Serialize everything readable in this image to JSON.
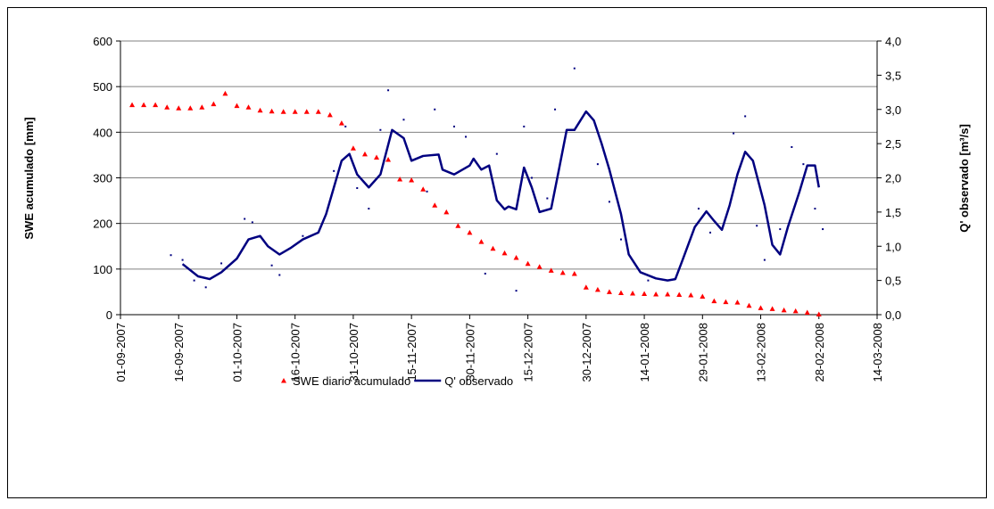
{
  "chart_data": {
    "type": "line",
    "ylabel": "SWE acumulado [mm]",
    "y2label": "Q' observado [m³/s]",
    "xlim": [
      "2007-09-01",
      "2008-03-14"
    ],
    "xticks": [
      {
        "value": "2007-09-01",
        "label": "01-09-2007"
      },
      {
        "value": "2007-09-16",
        "label": "16-09-2007"
      },
      {
        "value": "2007-10-01",
        "label": "01-10-2007"
      },
      {
        "value": "2007-10-16",
        "label": "16-10-2007"
      },
      {
        "value": "2007-10-31",
        "label": "31-10-2007"
      },
      {
        "value": "2007-11-15",
        "label": "15-11-2007"
      },
      {
        "value": "2007-11-30",
        "label": "30-11-2007"
      },
      {
        "value": "2007-12-15",
        "label": "15-12-2007"
      },
      {
        "value": "2007-12-30",
        "label": "30-12-2007"
      },
      {
        "value": "2008-01-14",
        "label": "14-01-2008"
      },
      {
        "value": "2008-01-29",
        "label": "29-01-2008"
      },
      {
        "value": "2008-02-13",
        "label": "13-02-2008"
      },
      {
        "value": "2008-02-28",
        "label": "28-02-2008"
      },
      {
        "value": "2008-03-14",
        "label": "14-03-2008"
      }
    ],
    "ylim": [
      0,
      600
    ],
    "yticks": [
      0,
      100,
      200,
      300,
      400,
      500,
      600
    ],
    "y2lim": [
      0,
      4
    ],
    "y2ticks": [
      {
        "value": 0,
        "label": "0,0"
      },
      {
        "value": 0.5,
        "label": "0,5"
      },
      {
        "value": 1,
        "label": "1,0"
      },
      {
        "value": 1.5,
        "label": "1,5"
      },
      {
        "value": 2,
        "label": "2,0"
      },
      {
        "value": 2.5,
        "label": "2,5"
      },
      {
        "value": 3,
        "label": "3,0"
      },
      {
        "value": 3.5,
        "label": "3,5"
      },
      {
        "value": 4,
        "label": "4,0"
      }
    ],
    "grid": true,
    "legend": "bottom",
    "series": [
      {
        "name": "SWE diario acumulado",
        "color": "#ff0000",
        "style": "markers",
        "axis": "y",
        "x": [
          "2007-09-04",
          "2007-09-07",
          "2007-09-10",
          "2007-09-13",
          "2007-09-16",
          "2007-09-19",
          "2007-09-22",
          "2007-09-25",
          "2007-09-28",
          "2007-10-01",
          "2007-10-04",
          "2007-10-07",
          "2007-10-10",
          "2007-10-13",
          "2007-10-16",
          "2007-10-19",
          "2007-10-22",
          "2007-10-25",
          "2007-10-28",
          "2007-10-31",
          "2007-11-03",
          "2007-11-06",
          "2007-11-09",
          "2007-11-12",
          "2007-11-15",
          "2007-11-18",
          "2007-11-21",
          "2007-11-24",
          "2007-11-27",
          "2007-11-30",
          "2007-12-03",
          "2007-12-06",
          "2007-12-09",
          "2007-12-12",
          "2007-12-15",
          "2007-12-18",
          "2007-12-21",
          "2007-12-24",
          "2007-12-27",
          "2007-12-30",
          "2008-01-02",
          "2008-01-05",
          "2008-01-08",
          "2008-01-11",
          "2008-01-14",
          "2008-01-17",
          "2008-01-20",
          "2008-01-23",
          "2008-01-26",
          "2008-01-29",
          "2008-02-01",
          "2008-02-04",
          "2008-02-07",
          "2008-02-10",
          "2008-02-13",
          "2008-02-16",
          "2008-02-19",
          "2008-02-22",
          "2008-02-25",
          "2008-02-28"
        ],
        "values": [
          460,
          460,
          460,
          455,
          453,
          453,
          455,
          462,
          485,
          458,
          455,
          448,
          446,
          445,
          445,
          445,
          445,
          438,
          420,
          365,
          352,
          345,
          340,
          297,
          295,
          275,
          240,
          225,
          195,
          180,
          160,
          145,
          135,
          125,
          112,
          105,
          97,
          92,
          90,
          60,
          55,
          50,
          48,
          47,
          46,
          45,
          45,
          44,
          43,
          40,
          30,
          28,
          27,
          20,
          15,
          13,
          10,
          8,
          5,
          1
        ]
      },
      {
        "name": "Q' observado",
        "color": "#000080",
        "style": "line",
        "axis": "y2",
        "x": [
          "2007-09-17",
          "2007-09-21",
          "2007-09-24",
          "2007-09-27",
          "2007-10-01",
          "2007-10-04",
          "2007-10-07",
          "2007-10-09",
          "2007-10-12",
          "2007-10-15",
          "2007-10-18",
          "2007-10-22",
          "2007-10-24",
          "2007-10-26",
          "2007-10-28",
          "2007-10-30",
          "2007-11-01",
          "2007-11-04",
          "2007-11-07",
          "2007-11-10",
          "2007-11-13",
          "2007-11-15",
          "2007-11-18",
          "2007-11-22",
          "2007-11-23",
          "2007-11-26",
          "2007-11-30",
          "2007-12-01",
          "2007-12-03",
          "2007-12-05",
          "2007-12-07",
          "2007-12-09",
          "2007-12-10",
          "2007-12-12",
          "2007-12-14",
          "2007-12-16",
          "2007-12-18",
          "2007-12-21",
          "2007-12-23",
          "2007-12-25",
          "2007-12-27",
          "2007-12-30",
          "2008-01-01",
          "2008-01-03",
          "2008-01-05",
          "2008-01-08",
          "2008-01-10",
          "2008-01-13",
          "2008-01-17",
          "2008-01-20",
          "2008-01-22",
          "2008-01-24",
          "2008-01-27",
          "2008-01-30",
          "2008-02-01",
          "2008-02-03",
          "2008-02-05",
          "2008-02-07",
          "2008-02-09",
          "2008-02-11",
          "2008-02-14",
          "2008-02-16",
          "2008-02-18",
          "2008-02-20",
          "2008-02-23",
          "2008-02-25",
          "2008-02-27",
          "2008-02-28"
        ],
        "values": [
          0.74,
          0.56,
          0.52,
          0.62,
          0.82,
          1.1,
          1.15,
          1.0,
          0.88,
          0.98,
          1.1,
          1.2,
          1.47,
          1.86,
          2.25,
          2.35,
          2.05,
          1.86,
          2.05,
          2.7,
          2.58,
          2.25,
          2.32,
          2.34,
          2.12,
          2.05,
          2.18,
          2.28,
          2.12,
          2.18,
          1.67,
          1.54,
          1.58,
          1.54,
          2.15,
          1.86,
          1.5,
          1.55,
          2.12,
          2.7,
          2.7,
          2.97,
          2.84,
          2.5,
          2.12,
          1.47,
          0.88,
          0.62,
          0.53,
          0.5,
          0.52,
          0.82,
          1.28,
          1.51,
          1.37,
          1.24,
          1.6,
          2.05,
          2.38,
          2.25,
          1.6,
          1.02,
          0.88,
          1.28,
          1.8,
          2.18,
          2.18,
          1.86
        ]
      },
      {
        "color": "#000080",
        "style": "dots",
        "axis": "y2",
        "x": [
          "2007-09-14",
          "2007-09-17",
          "2007-09-20",
          "2007-09-23",
          "2007-09-27",
          "2007-10-03",
          "2007-10-05",
          "2007-10-10",
          "2007-10-12",
          "2007-10-18",
          "2007-10-26",
          "2007-10-29",
          "2007-11-01",
          "2007-11-04",
          "2007-11-07",
          "2007-11-09",
          "2007-11-13",
          "2007-11-19",
          "2007-11-21",
          "2007-11-26",
          "2007-11-29",
          "2007-12-04",
          "2007-12-07",
          "2007-12-12",
          "2007-12-14",
          "2007-12-16",
          "2007-12-20",
          "2007-12-22",
          "2007-12-27",
          "2008-01-02",
          "2008-01-05",
          "2008-01-08",
          "2008-01-15",
          "2008-01-28",
          "2008-01-31",
          "2008-02-06",
          "2008-02-09",
          "2008-02-12",
          "2008-02-14",
          "2008-02-18",
          "2008-02-21",
          "2008-02-24",
          "2008-02-27",
          "2008-02-29"
        ],
        "values": [
          0.87,
          0.8,
          0.5,
          0.4,
          0.75,
          1.4,
          1.35,
          0.72,
          0.58,
          1.15,
          2.1,
          2.75,
          1.85,
          1.55,
          2.7,
          3.28,
          2.85,
          1.8,
          3.0,
          2.75,
          2.6,
          0.6,
          2.35,
          0.35,
          2.75,
          2.0,
          1.7,
          3.0,
          3.6,
          2.2,
          1.65,
          1.1,
          0.5,
          1.55,
          1.2,
          2.65,
          2.9,
          1.3,
          0.8,
          1.25,
          2.45,
          2.2,
          1.55,
          1.25
        ]
      }
    ]
  }
}
